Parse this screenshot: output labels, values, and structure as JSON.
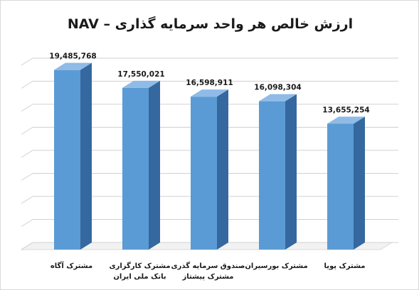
{
  "chart_data": {
    "type": "bar",
    "title": "ارزش خالص هر واحد سرمایه گذاری – NAV",
    "categories": [
      "مشترک آگاه",
      "مشترک کارگزاری بانک ملی ایران",
      "صندوق سرمایه گذری مشترک پیشتاز",
      "مشترک بورسیران",
      "مشترک پویا"
    ],
    "values": [
      19485768,
      17550021,
      16598911,
      16098304,
      13655254
    ],
    "value_labels": [
      "19,485,768",
      "17,550,021",
      "16,598,911",
      "16,098,304",
      "13,655,254"
    ],
    "ylim": [
      0,
      20000000
    ],
    "grid": true,
    "legend": "none",
    "colors": {
      "bar_front": "#5b9bd5",
      "bar_side": "#35689e",
      "bar_top": "#8fbbe6",
      "grid": "#d0d0d0"
    }
  }
}
